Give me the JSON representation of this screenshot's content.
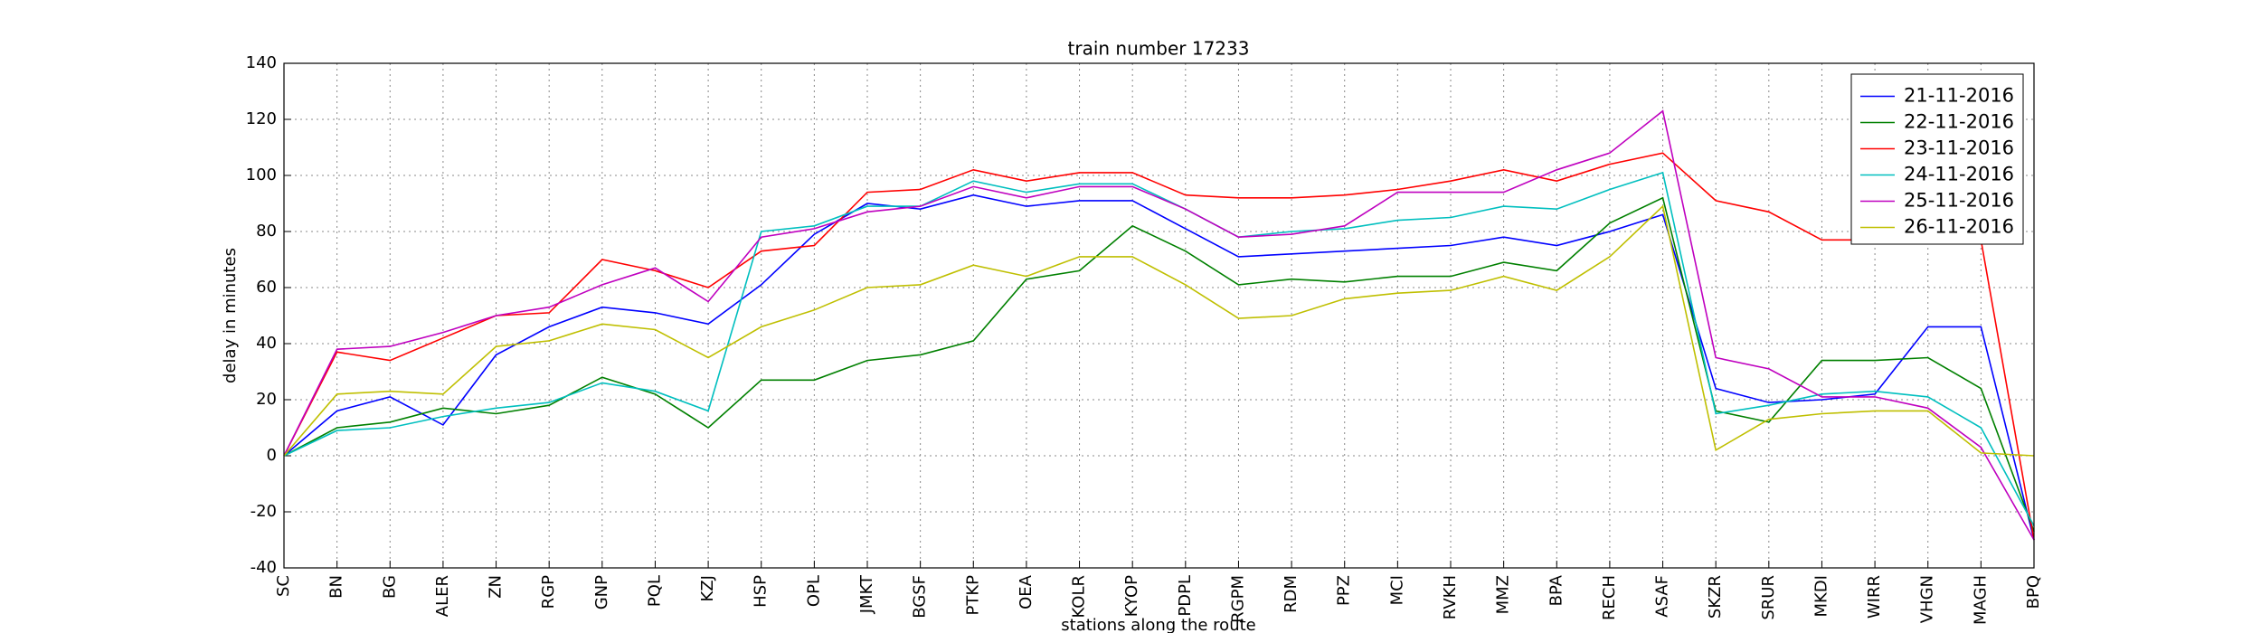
{
  "chart_data": {
    "type": "line",
    "title": "train number 17233",
    "x_label": "stations along the route",
    "y_label": "delay in minutes",
    "categories": [
      "SC",
      "BN",
      "BG",
      "ALER",
      "ZN",
      "RGP",
      "GNP",
      "PQL",
      "KZJ",
      "HSP",
      "OPL",
      "JMKT",
      "BGSF",
      "PTKP",
      "OEA",
      "KOLR",
      "KYOP",
      "PDPL",
      "RGPM",
      "RDM",
      "PPZ",
      "MCI",
      "RVKH",
      "MMZ",
      "BPA",
      "RECH",
      "ASAF",
      "SKZR",
      "SRUR",
      "MKDI",
      "WIRR",
      "VHGN",
      "MAGH",
      "BPQ"
    ],
    "series": [
      {
        "name": "21-11-2016",
        "color": "#0000ff",
        "values": [
          0,
          16,
          21,
          11,
          36,
          46,
          53,
          51,
          47,
          61,
          79,
          90,
          88,
          93,
          89,
          91,
          91,
          81,
          71,
          72,
          73,
          74,
          75,
          78,
          75,
          80,
          86,
          24,
          19,
          20,
          22,
          46,
          46,
          -30
        ]
      },
      {
        "name": "22-11-2016",
        "color": "#008000",
        "values": [
          0,
          10,
          12,
          17,
          15,
          18,
          28,
          22,
          10,
          27,
          27,
          34,
          36,
          41,
          63,
          66,
          82,
          73,
          61,
          63,
          62,
          64,
          64,
          69,
          66,
          83,
          92,
          16,
          12,
          34,
          34,
          35,
          24,
          -27
        ]
      },
      {
        "name": "23-11-2016",
        "color": "#ff0000",
        "values": [
          0,
          37,
          34,
          42,
          50,
          51,
          70,
          66,
          60,
          73,
          75,
          94,
          95,
          102,
          98,
          101,
          101,
          93,
          92,
          92,
          93,
          95,
          98,
          102,
          98,
          104,
          108,
          91,
          87,
          77,
          77,
          77,
          77,
          -30
        ]
      },
      {
        "name": "24-11-2016",
        "color": "#00bfbf",
        "values": [
          0,
          9,
          10,
          14,
          17,
          19,
          26,
          23,
          16,
          80,
          82,
          89,
          89,
          98,
          94,
          97,
          97,
          88,
          78,
          80,
          81,
          84,
          85,
          89,
          88,
          95,
          101,
          15,
          18,
          22,
          23,
          21,
          10,
          -25
        ]
      },
      {
        "name": "25-11-2016",
        "color": "#bf00bf",
        "values": [
          0,
          38,
          39,
          44,
          50,
          53,
          61,
          67,
          55,
          78,
          81,
          87,
          89,
          96,
          92,
          96,
          96,
          88,
          78,
          79,
          82,
          94,
          94,
          94,
          102,
          108,
          123,
          35,
          31,
          21,
          21,
          17,
          3,
          -30
        ]
      },
      {
        "name": "26-11-2016",
        "color": "#bfbf00",
        "values": [
          0,
          22,
          23,
          22,
          39,
          41,
          47,
          45,
          35,
          46,
          52,
          60,
          61,
          68,
          64,
          71,
          71,
          61,
          49,
          50,
          56,
          58,
          59,
          64,
          59,
          71,
          89,
          2,
          13,
          15,
          16,
          16,
          1,
          0
        ]
      }
    ],
    "ylim": [
      -40,
      140
    ],
    "yticks": [
      -40,
      -20,
      0,
      20,
      40,
      60,
      80,
      100,
      120,
      140
    ],
    "grid": true,
    "legend": "upper-right"
  }
}
